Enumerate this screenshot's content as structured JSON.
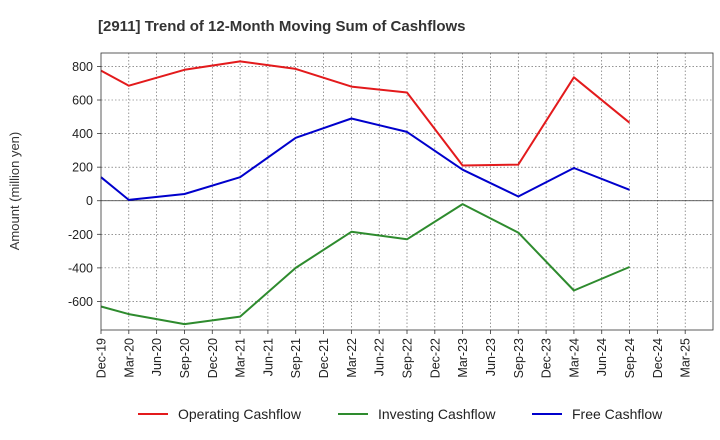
{
  "chart_data": {
    "type": "line",
    "title": "[2911]  Trend of 12-Month Moving Sum of Cashflows",
    "ylabel": "Amount (million yen)",
    "xlabel": "",
    "x": [
      "Dec-19",
      "Mar-20",
      "Jun-20",
      "Sep-20",
      "Dec-20",
      "Mar-21",
      "Jun-21",
      "Sep-21",
      "Dec-21",
      "Mar-22",
      "Jun-22",
      "Sep-22",
      "Dec-22",
      "Mar-23",
      "Jun-23",
      "Sep-23",
      "Dec-23",
      "Mar-24",
      "Jun-24",
      "Sep-24",
      "Dec-24",
      "Mar-25"
    ],
    "ylim": [
      -770,
      880
    ],
    "yticks": [
      800,
      600,
      400,
      200,
      0,
      -200,
      -400,
      -600
    ],
    "grid": true,
    "legend_position": "bottom",
    "series": [
      {
        "name": "Operating Cashflow",
        "color": "#e31a1c",
        "values": [
          775,
          685,
          null,
          780,
          null,
          830,
          null,
          785,
          null,
          680,
          null,
          645,
          null,
          210,
          null,
          215,
          null,
          735,
          null,
          465,
          null,
          null
        ]
      },
      {
        "name": "Investing Cashflow",
        "color": "#2e8b2e",
        "values": [
          -630,
          -675,
          null,
          -735,
          null,
          -690,
          null,
          -400,
          null,
          -185,
          null,
          -230,
          null,
          -20,
          null,
          -190,
          null,
          -535,
          null,
          -395,
          null,
          null
        ]
      },
      {
        "name": "Free Cashflow",
        "color": "#0000cc",
        "values": [
          140,
          5,
          null,
          40,
          null,
          140,
          null,
          375,
          null,
          490,
          null,
          410,
          null,
          185,
          null,
          25,
          null,
          195,
          null,
          65,
          null,
          null
        ]
      }
    ]
  }
}
